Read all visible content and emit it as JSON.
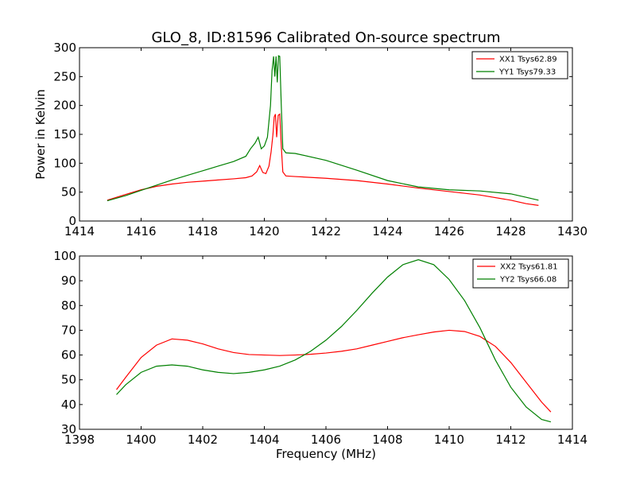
{
  "chart_data": [
    {
      "type": "line",
      "title": "GLO_8, ID:81596 Calibrated On-source spectrum",
      "xlabel": "",
      "ylabel": "Power in Kelvin",
      "xlim": [
        1414,
        1430
      ],
      "ylim": [
        0,
        300
      ],
      "xticks": [
        "1414",
        "1416",
        "1418",
        "1420",
        "1422",
        "1424",
        "1426",
        "1428",
        "1430"
      ],
      "yticks": [
        "0",
        "50",
        "100",
        "150",
        "200",
        "250",
        "300"
      ],
      "legend_position": "top-right",
      "series": [
        {
          "name": "XX1 Tsys62.89",
          "color": "#ff0000",
          "x": [
            1414.9,
            1415.5,
            1416.0,
            1416.5,
            1417.0,
            1417.5,
            1418.0,
            1418.5,
            1419.0,
            1419.4,
            1419.6,
            1419.75,
            1419.85,
            1419.95,
            1420.05,
            1420.15,
            1420.22,
            1420.28,
            1420.32,
            1420.36,
            1420.4,
            1420.45,
            1420.5,
            1420.55,
            1420.6,
            1420.7,
            1421.0,
            1422.0,
            1423.0,
            1424.0,
            1425.0,
            1426.0,
            1427.0,
            1428.0,
            1428.5,
            1428.9
          ],
          "y": [
            36,
            46,
            54,
            60,
            64,
            67,
            69,
            71,
            73,
            75,
            78,
            85,
            96,
            84,
            82,
            95,
            120,
            150,
            180,
            185,
            145,
            183,
            185,
            130,
            85,
            78,
            77,
            74,
            70,
            64,
            57,
            51,
            45,
            36,
            30,
            27
          ]
        },
        {
          "name": "YY1 Tsys79.33",
          "color": "#008000",
          "x": [
            1414.9,
            1415.5,
            1416.0,
            1416.5,
            1417.0,
            1417.5,
            1418.0,
            1418.5,
            1419.0,
            1419.4,
            1419.55,
            1419.7,
            1419.8,
            1419.9,
            1420.0,
            1420.1,
            1420.2,
            1420.25,
            1420.3,
            1420.34,
            1420.38,
            1420.42,
            1420.46,
            1420.5,
            1420.55,
            1420.6,
            1420.7,
            1421.0,
            1422.0,
            1423.0,
            1424.0,
            1425.0,
            1426.0,
            1427.0,
            1428.0,
            1428.5,
            1428.9
          ],
          "y": [
            35,
            44,
            53,
            62,
            71,
            79,
            87,
            95,
            103,
            112,
            125,
            135,
            145,
            125,
            130,
            145,
            200,
            260,
            285,
            250,
            285,
            240,
            286,
            285,
            200,
            125,
            118,
            117,
            105,
            88,
            70,
            59,
            54,
            52,
            47,
            41,
            36
          ]
        }
      ]
    },
    {
      "type": "line",
      "title": "",
      "xlabel": "Frequency (MHz)",
      "ylabel": "",
      "xlim": [
        1398,
        1414
      ],
      "ylim": [
        30,
        100
      ],
      "xticks": [
        "1398",
        "1400",
        "1402",
        "1404",
        "1406",
        "1408",
        "1410",
        "1412",
        "1414"
      ],
      "yticks": [
        "30",
        "40",
        "50",
        "60",
        "70",
        "80",
        "90",
        "100"
      ],
      "legend_position": "top-right",
      "series": [
        {
          "name": "XX2 Tsys61.81",
          "color": "#ff0000",
          "x": [
            1399.2,
            1399.5,
            1400.0,
            1400.5,
            1401.0,
            1401.5,
            1402.0,
            1402.5,
            1403.0,
            1403.5,
            1404.0,
            1404.5,
            1405.0,
            1405.5,
            1406.0,
            1406.5,
            1407.0,
            1407.5,
            1408.0,
            1408.5,
            1409.0,
            1409.5,
            1410.0,
            1410.5,
            1411.0,
            1411.5,
            1412.0,
            1412.5,
            1413.0,
            1413.3
          ],
          "y": [
            46,
            51,
            59,
            64,
            66.5,
            66,
            64.5,
            62.5,
            61,
            60.2,
            60,
            59.8,
            60,
            60.3,
            60.8,
            61.5,
            62.5,
            64,
            65.5,
            67,
            68.2,
            69.3,
            70,
            69.5,
            67.5,
            63.5,
            57,
            49,
            41,
            37
          ]
        },
        {
          "name": "YY2 Tsys66.08",
          "color": "#008000",
          "x": [
            1399.2,
            1399.5,
            1400.0,
            1400.5,
            1401.0,
            1401.5,
            1402.0,
            1402.5,
            1403.0,
            1403.5,
            1404.0,
            1404.5,
            1405.0,
            1405.5,
            1406.0,
            1406.5,
            1407.0,
            1407.5,
            1408.0,
            1408.5,
            1409.0,
            1409.5,
            1410.0,
            1410.5,
            1411.0,
            1411.5,
            1412.0,
            1412.5,
            1413.0,
            1413.3
          ],
          "y": [
            44,
            48,
            53,
            55.5,
            56,
            55.5,
            54,
            53,
            52.5,
            53,
            54,
            55.5,
            58,
            61.5,
            66,
            71.5,
            78,
            85,
            91.5,
            96.5,
            98.5,
            96.5,
            90.5,
            82,
            71,
            58,
            47,
            39,
            34,
            33
          ]
        }
      ]
    }
  ]
}
